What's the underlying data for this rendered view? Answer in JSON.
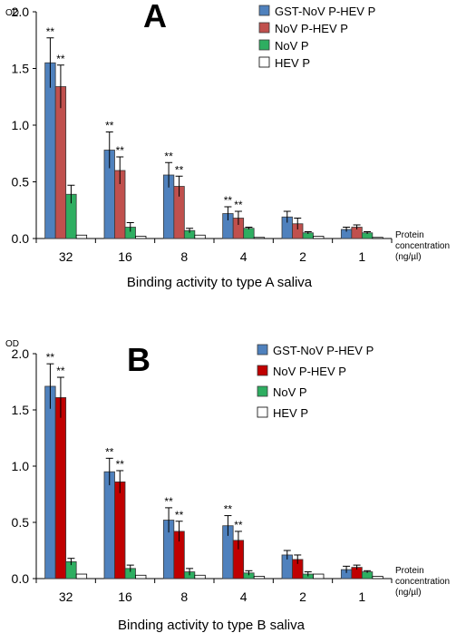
{
  "figure": {
    "panels": [
      "A",
      "B"
    ]
  },
  "chart_data": [
    {
      "type": "bar",
      "panel_label": "A",
      "ylabel": "OD",
      "xlabel": "Binding activity to type A saliva",
      "x_axis_note_lines": [
        "Protein",
        "concentration",
        "(ng/µl)"
      ],
      "categories": [
        "32",
        "16",
        "8",
        "4",
        "2",
        "1"
      ],
      "ylim": [
        0,
        2.0
      ],
      "yticks": [
        "0.0",
        "0.5",
        "1.0",
        "1.5",
        "2.0"
      ],
      "legend_position": "top-right",
      "series": [
        {
          "name": "GST-NoV P-HEV P",
          "color": "#4f81bd",
          "values": [
            1.55,
            0.78,
            0.56,
            0.22,
            0.19,
            0.08
          ],
          "errors": [
            0.22,
            0.16,
            0.11,
            0.06,
            0.05,
            0.02
          ],
          "stars": [
            "**",
            "**",
            "**",
            "**",
            "",
            ""
          ]
        },
        {
          "name": "NoV P-HEV P",
          "color": "#c0504d",
          "values": [
            1.34,
            0.6,
            0.46,
            0.18,
            0.13,
            0.1
          ],
          "errors": [
            0.19,
            0.12,
            0.09,
            0.06,
            0.05,
            0.02
          ],
          "stars": [
            "**",
            "**",
            "**",
            "**",
            "",
            ""
          ]
        },
        {
          "name": "NoV P",
          "color": "#2eae61",
          "values": [
            0.39,
            0.1,
            0.07,
            0.09,
            0.05,
            0.05
          ],
          "errors": [
            0.08,
            0.04,
            0.02,
            0.01,
            0.01,
            0.01
          ],
          "stars": [
            "",
            "",
            "",
            "",
            "",
            ""
          ]
        },
        {
          "name": "HEV P",
          "color": "#ffffff",
          "values": [
            0.03,
            0.02,
            0.03,
            0.01,
            0.02,
            0.01
          ],
          "errors": [
            0.005,
            0.005,
            0.005,
            0.005,
            0.005,
            0.005
          ],
          "stars": [
            "",
            "",
            "",
            "",
            "",
            ""
          ]
        }
      ]
    },
    {
      "type": "bar",
      "panel_label": "B",
      "ylabel": "OD",
      "xlabel": "Binding activity to type B saliva",
      "x_axis_note_lines": [
        "Protein",
        "concentration",
        "(ng/µl)"
      ],
      "categories": [
        "32",
        "16",
        "8",
        "4",
        "2",
        "1"
      ],
      "ylim": [
        0,
        2.0
      ],
      "yticks": [
        "0.0",
        "0.5",
        "1.0",
        "1.5",
        "2.0"
      ],
      "legend_position": "top-right",
      "series": [
        {
          "name": "GST-NoV P-HEV P",
          "color": "#4f81bd",
          "values": [
            1.71,
            0.95,
            0.52,
            0.47,
            0.21,
            0.08
          ],
          "errors": [
            0.2,
            0.12,
            0.11,
            0.09,
            0.04,
            0.03
          ],
          "stars": [
            "**",
            "**",
            "**",
            "**",
            "",
            ""
          ]
        },
        {
          "name": "NoV P-HEV P",
          "color": "#c00000",
          "values": [
            1.61,
            0.86,
            0.42,
            0.34,
            0.17,
            0.1
          ],
          "errors": [
            0.18,
            0.1,
            0.09,
            0.08,
            0.04,
            0.02
          ],
          "stars": [
            "**",
            "**",
            "**",
            "**",
            "",
            ""
          ]
        },
        {
          "name": "NoV P",
          "color": "#2eae61",
          "values": [
            0.15,
            0.09,
            0.06,
            0.05,
            0.04,
            0.06
          ],
          "errors": [
            0.03,
            0.03,
            0.03,
            0.02,
            0.02,
            0.01
          ],
          "stars": [
            "",
            "",
            "",
            "",
            "",
            ""
          ]
        },
        {
          "name": "HEV P",
          "color": "#ffffff",
          "values": [
            0.04,
            0.03,
            0.03,
            0.02,
            0.04,
            0.02
          ],
          "errors": [
            0.005,
            0.005,
            0.005,
            0.005,
            0.005,
            0.005
          ],
          "stars": [
            "",
            "",
            "",
            "",
            "",
            ""
          ]
        }
      ]
    }
  ]
}
